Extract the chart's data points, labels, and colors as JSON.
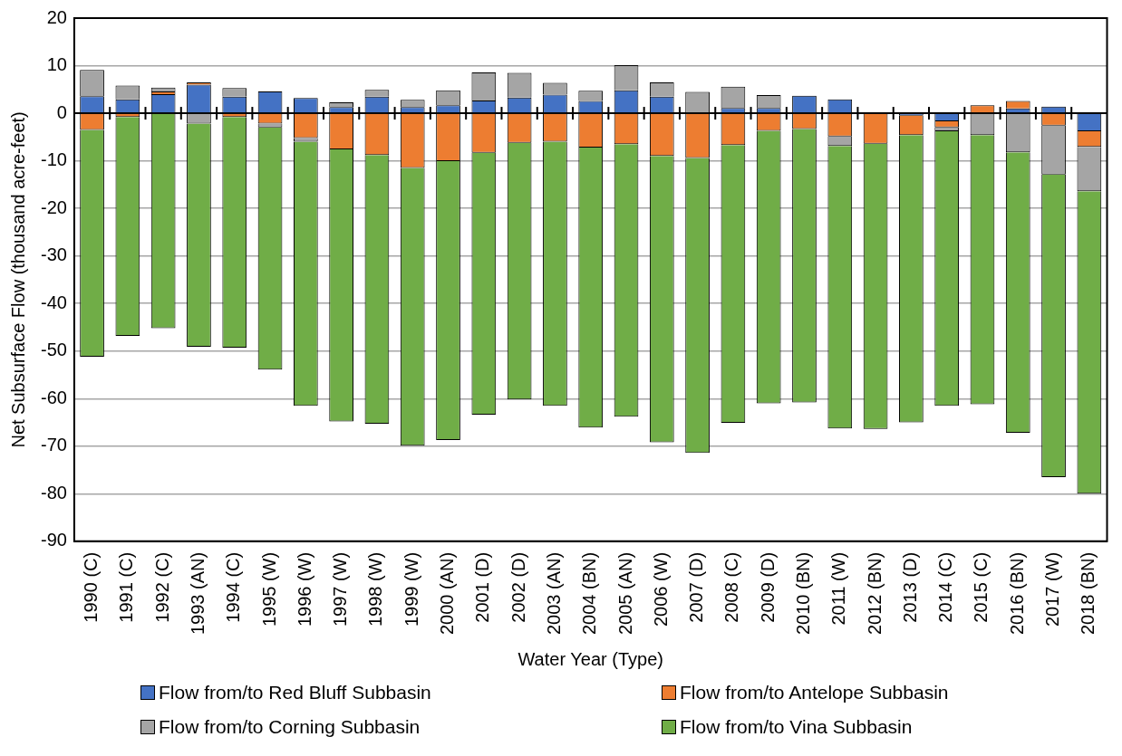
{
  "chart_data": {
    "type": "bar",
    "stacked": true,
    "xlabel": "Water Year (Type)",
    "ylabel": "Net Subsurface Flow (thousand acre-feet)",
    "categories": [
      "1990 (C)",
      "1991 (C)",
      "1992 (C)",
      "1993 (AN)",
      "1994 (C)",
      "1995 (W)",
      "1996 (W)",
      "1997 (W)",
      "1998 (W)",
      "1999 (W)",
      "2000 (AN)",
      "2001 (D)",
      "2002 (D)",
      "2003 (AN)",
      "2004 (BN)",
      "2005 (AN)",
      "2006 (W)",
      "2007 (D)",
      "2008 (C)",
      "2009 (D)",
      "2010 (BN)",
      "2011 (W)",
      "2012 (BN)",
      "2013 (D)",
      "2014 (C)",
      "2015 (C)",
      "2016 (BN)",
      "2017 (W)",
      "2018 (BN)"
    ],
    "series": [
      {
        "name": "Flow from/to Red Bluff Subbasin",
        "color": "#4472c4",
        "values": [
          3.6,
          2.9,
          4.0,
          6.0,
          3.5,
          4.6,
          3.2,
          1.3,
          3.5,
          1.3,
          1.7,
          2.7,
          3.3,
          3.9,
          2.6,
          4.8,
          3.5,
          0,
          1.1,
          1.1,
          3.7,
          2.9,
          0,
          -0.5,
          -1.7,
          0,
          1.0,
          1.4,
          -3.8
        ]
      },
      {
        "name": "Flow from/to Antelope Subbasin",
        "color": "#ed7d31",
        "values": [
          -3.5,
          -0.8,
          0.6,
          0.5,
          -0.8,
          -2.2,
          -5.2,
          -7.6,
          -8.8,
          -11.5,
          -10.1,
          -8.3,
          -6.2,
          -6.0,
          -7.2,
          -6.5,
          -9.0,
          -9.4,
          -6.7,
          -3.7,
          -3.3,
          -4.9,
          -6.4,
          -4.1,
          -1.3,
          1.7,
          1.6,
          -2.6,
          -3.3
        ]
      },
      {
        "name": "Flow from/to Corning Subbasin",
        "color": "#a5a5a5",
        "values": [
          5.5,
          2.9,
          0.8,
          -2.2,
          1.8,
          -0.8,
          -0.8,
          1.0,
          1.4,
          1.5,
          3.1,
          5.9,
          5.2,
          2.5,
          2.1,
          5.3,
          3.0,
          4.5,
          4.5,
          2.7,
          0,
          -2.0,
          0,
          0,
          -0.8,
          -4.6,
          -8.2,
          -10.3,
          -9.3
        ]
      },
      {
        "name": "Flow from/to Vina Subbasin",
        "color": "#70ad47",
        "values": [
          -47.7,
          -46.0,
          -45.2,
          -46.9,
          -48.5,
          -50.9,
          -55.5,
          -57.2,
          -56.5,
          -58.4,
          -58.6,
          -55.1,
          -54.0,
          -55.5,
          -58.9,
          -57.3,
          -60.2,
          -62.0,
          -58.4,
          -57.3,
          -57.5,
          -59.4,
          -60.0,
          -60.4,
          -57.7,
          -56.6,
          -59.0,
          -63.6,
          -63.6
        ]
      }
    ],
    "ylim": [
      -90,
      20
    ],
    "yticks": [
      -90,
      -80,
      -70,
      -60,
      -50,
      -40,
      -30,
      -20,
      -10,
      0,
      10,
      20
    ],
    "grid": "y",
    "legend": "bottom"
  }
}
